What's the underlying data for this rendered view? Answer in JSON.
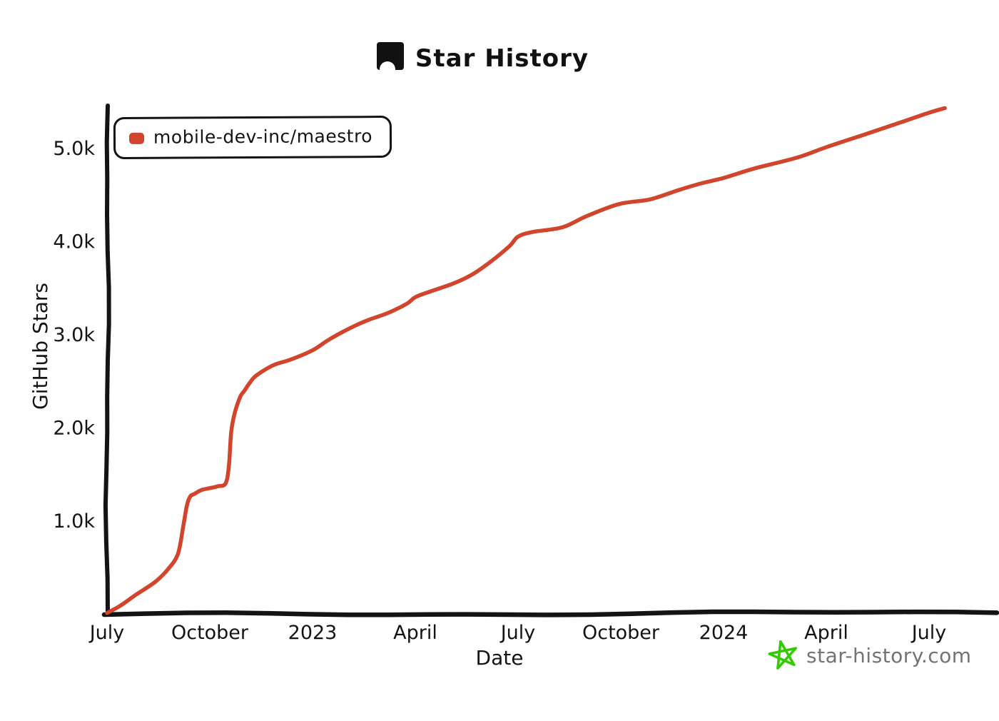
{
  "title": {
    "text": "Star History"
  },
  "legend": {
    "items": [
      {
        "label": "mobile-dev-inc/maestro",
        "color": "#d0452b"
      }
    ]
  },
  "watermark": {
    "text": "star-history.com",
    "star_color": "#31cb00",
    "text_color": "#737373"
  },
  "chart_data": {
    "type": "line",
    "title": "Star History",
    "xlabel": "Date",
    "ylabel": "GitHub Stars",
    "grid": false,
    "legend_position": "top-left",
    "ylim": [
      0,
      5500
    ],
    "x_range_months_from_2022_07": [
      0,
      26
    ],
    "y_ticks": [
      {
        "label": "1.0k",
        "value": 1000
      },
      {
        "label": "2.0k",
        "value": 2000
      },
      {
        "label": "3.0k",
        "value": 3000
      },
      {
        "label": "4.0k",
        "value": 4000
      },
      {
        "label": "5.0k",
        "value": 5000
      }
    ],
    "x_ticks": [
      {
        "label": "July",
        "month": 0
      },
      {
        "label": "October",
        "month": 3
      },
      {
        "label": "2023",
        "month": 6
      },
      {
        "label": "April",
        "month": 9
      },
      {
        "label": "July",
        "month": 12
      },
      {
        "label": "October",
        "month": 15
      },
      {
        "label": "2024",
        "month": 18
      },
      {
        "label": "April",
        "month": 21
      },
      {
        "label": "July",
        "month": 24
      }
    ],
    "series": [
      {
        "name": "mobile-dev-inc/maestro",
        "color": "#d0452b",
        "points": [
          [
            "2022-07-01",
            10
          ],
          [
            "2022-07-13",
            90
          ],
          [
            "2022-07-26",
            200
          ],
          [
            "2022-08-07",
            290
          ],
          [
            "2022-08-15",
            360
          ],
          [
            "2022-08-24",
            470
          ],
          [
            "2022-09-03",
            640
          ],
          [
            "2022-09-08",
            950
          ],
          [
            "2022-09-11",
            1160
          ],
          [
            "2022-09-14",
            1260
          ],
          [
            "2022-09-18",
            1290
          ],
          [
            "2022-09-24",
            1330
          ],
          [
            "2022-10-01",
            1350
          ],
          [
            "2022-10-08",
            1370
          ],
          [
            "2022-10-15",
            1400
          ],
          [
            "2022-10-18",
            1590
          ],
          [
            "2022-10-20",
            1950
          ],
          [
            "2022-10-23",
            2150
          ],
          [
            "2022-10-28",
            2330
          ],
          [
            "2022-11-01",
            2390
          ],
          [
            "2022-11-06",
            2480
          ],
          [
            "2022-11-12",
            2560
          ],
          [
            "2022-11-27",
            2670
          ],
          [
            "2022-12-12",
            2730
          ],
          [
            "2023-01-01",
            2830
          ],
          [
            "2023-01-15",
            2940
          ],
          [
            "2023-02-01",
            3050
          ],
          [
            "2023-02-19",
            3150
          ],
          [
            "2023-03-07",
            3230
          ],
          [
            "2023-03-24",
            3330
          ],
          [
            "2023-04-01",
            3400
          ],
          [
            "2023-04-14",
            3460
          ],
          [
            "2023-05-05",
            3550
          ],
          [
            "2023-05-22",
            3650
          ],
          [
            "2023-06-07",
            3780
          ],
          [
            "2023-06-24",
            3950
          ],
          [
            "2023-07-01",
            4050
          ],
          [
            "2023-07-14",
            4100
          ],
          [
            "2023-08-10",
            4150
          ],
          [
            "2023-09-01",
            4270
          ],
          [
            "2023-09-30",
            4400
          ],
          [
            "2023-10-27",
            4450
          ],
          [
            "2023-11-22",
            4550
          ],
          [
            "2023-12-11",
            4620
          ],
          [
            "2024-01-01",
            4680
          ],
          [
            "2024-01-28",
            4780
          ],
          [
            "2024-03-06",
            4900
          ],
          [
            "2024-04-01",
            5010
          ],
          [
            "2024-05-08",
            5160
          ],
          [
            "2024-06-07",
            5280
          ],
          [
            "2024-07-01",
            5380
          ],
          [
            "2024-07-15",
            5430
          ]
        ]
      }
    ]
  }
}
